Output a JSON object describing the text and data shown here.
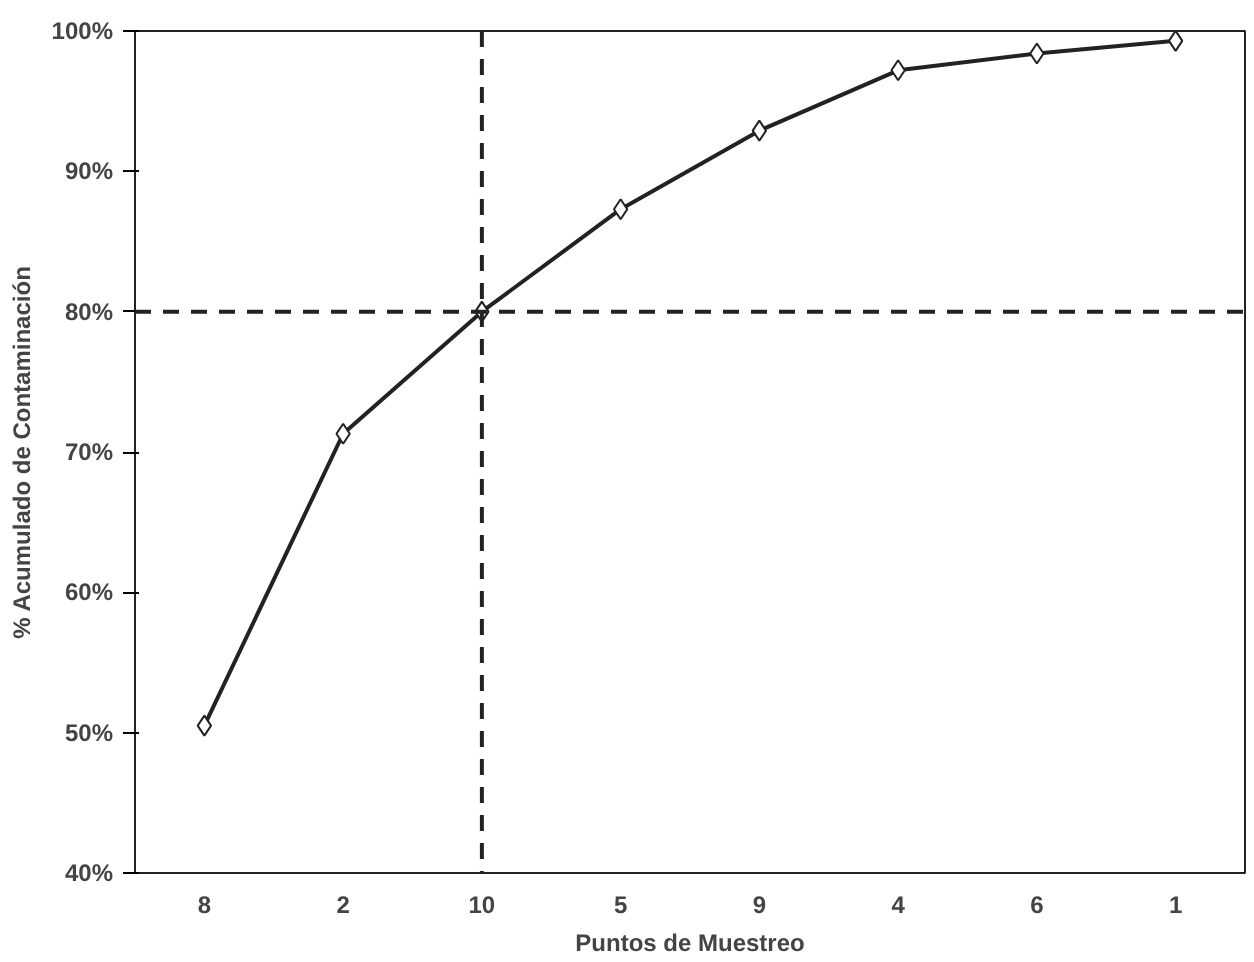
{
  "chart_data": {
    "type": "line",
    "xlabel": "Puntos de Muestreo",
    "ylabel": "% Acumulado de Contaminación",
    "categories": [
      "8",
      "2",
      "10",
      "5",
      "9",
      "4",
      "6",
      "1"
    ],
    "series": [
      {
        "color": "#222222",
        "values": [
          50.5,
          71.3,
          80.0,
          87.3,
          92.9,
          97.2,
          98.4,
          99.3
        ]
      }
    ],
    "ylim": [
      40,
      100
    ],
    "yticks": [
      {
        "value": 40,
        "label": "40%"
      },
      {
        "value": 50,
        "label": "50%"
      },
      {
        "value": 60,
        "label": "60%"
      },
      {
        "value": 70,
        "label": "70%"
      },
      {
        "value": 80,
        "label": "80%"
      },
      {
        "value": 90,
        "label": "90%"
      },
      {
        "value": 100,
        "label": "100%"
      }
    ],
    "ref_lines": [
      {
        "axis": "y",
        "value": 80,
        "color": "#222222",
        "line_style": "dashed"
      },
      {
        "axis": "x",
        "value": "10",
        "color": "#222222",
        "line_style": "dashed"
      }
    ],
    "grid": false,
    "marker": "diamond",
    "line_style": "solid"
  }
}
